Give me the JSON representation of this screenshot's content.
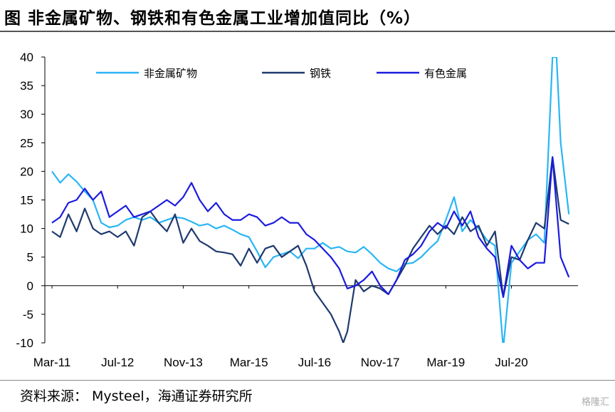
{
  "title": "图  非金属矿物、钢铁和有色金属工业增加值同比（%）",
  "source": "资料来源：  Mysteel，海通证券研究所",
  "watermark": "格隆汇",
  "chart_data": {
    "type": "line",
    "title": "非金属矿物、钢铁和有色金属工业增加值同比（%）",
    "xlabel": "",
    "ylabel": "",
    "ylim": [
      -10,
      40
    ],
    "yticks": [
      40,
      35,
      30,
      25,
      20,
      15,
      10,
      5,
      0,
      -5,
      -10
    ],
    "xlim": [
      0,
      127
    ],
    "x_ticks": [
      {
        "label": "Mar-11",
        "index": 0
      },
      {
        "label": "Jul-12",
        "index": 16
      },
      {
        "label": "Nov-13",
        "index": 32
      },
      {
        "label": "Mar-15",
        "index": 48
      },
      {
        "label": "Jul-16",
        "index": 64
      },
      {
        "label": "Nov-17",
        "index": 80
      },
      {
        "label": "Mar-19",
        "index": 96
      },
      {
        "label": "Jul-20",
        "index": 112
      }
    ],
    "legend_position": "top",
    "series": [
      {
        "name": "非金属矿物",
        "color": "#29B6F6",
        "points": [
          [
            0,
            20
          ],
          [
            2,
            18
          ],
          [
            4,
            19.5
          ],
          [
            6,
            18.2
          ],
          [
            8,
            16.5
          ],
          [
            10,
            15
          ],
          [
            12,
            11
          ],
          [
            14,
            10.2
          ],
          [
            16,
            10.5
          ],
          [
            18,
            11.5
          ],
          [
            20,
            12
          ],
          [
            22,
            11.5
          ],
          [
            24,
            12
          ],
          [
            26,
            11
          ],
          [
            28,
            11.5
          ],
          [
            30,
            12
          ],
          [
            32,
            11.8
          ],
          [
            34,
            11.2
          ],
          [
            36,
            10.5
          ],
          [
            38,
            10.8
          ],
          [
            40,
            10
          ],
          [
            42,
            10.5
          ],
          [
            44,
            9.8
          ],
          [
            46,
            9
          ],
          [
            48,
            8.5
          ],
          [
            50,
            6
          ],
          [
            52,
            3.2
          ],
          [
            54,
            5
          ],
          [
            56,
            5.5
          ],
          [
            58,
            6
          ],
          [
            60,
            4.8
          ],
          [
            62,
            6.5
          ],
          [
            64,
            6.5
          ],
          [
            66,
            7.5
          ],
          [
            68,
            6.5
          ],
          [
            70,
            6.8
          ],
          [
            72,
            6
          ],
          [
            74,
            5.8
          ],
          [
            76,
            6.8
          ],
          [
            78,
            5.5
          ],
          [
            80,
            4
          ],
          [
            82,
            3
          ],
          [
            84,
            2.5
          ],
          [
            86,
            3.8
          ],
          [
            88,
            4
          ],
          [
            90,
            5
          ],
          [
            92,
            6.5
          ],
          [
            94,
            7.8
          ],
          [
            96,
            11.5
          ],
          [
            98,
            15.5
          ],
          [
            100,
            9.5
          ],
          [
            102,
            11.5
          ],
          [
            104,
            10
          ],
          [
            106,
            8
          ],
          [
            108,
            7
          ],
          [
            110,
            -11
          ],
          [
            112,
            4
          ],
          [
            114,
            6
          ],
          [
            116,
            8
          ],
          [
            118,
            9
          ],
          [
            120,
            7.5
          ],
          [
            122,
            40
          ],
          [
            123,
            40
          ],
          [
            124,
            25
          ],
          [
            126,
            12.5
          ]
        ]
      },
      {
        "name": "钢铁",
        "color": "#1F3A6E",
        "points": [
          [
            0,
            9.5
          ],
          [
            2,
            8.5
          ],
          [
            4,
            12.5
          ],
          [
            6,
            9.5
          ],
          [
            8,
            13.5
          ],
          [
            10,
            10
          ],
          [
            12,
            9
          ],
          [
            14,
            9.5
          ],
          [
            16,
            8.5
          ],
          [
            18,
            9.5
          ],
          [
            20,
            7
          ],
          [
            22,
            12
          ],
          [
            24,
            13
          ],
          [
            26,
            11
          ],
          [
            28,
            9.5
          ],
          [
            30,
            12.5
          ],
          [
            32,
            7.5
          ],
          [
            34,
            10
          ],
          [
            36,
            7.8
          ],
          [
            38,
            7
          ],
          [
            40,
            6
          ],
          [
            42,
            5.8
          ],
          [
            44,
            5.5
          ],
          [
            46,
            3.5
          ],
          [
            48,
            6.5
          ],
          [
            50,
            4
          ],
          [
            52,
            6.5
          ],
          [
            54,
            7
          ],
          [
            56,
            5
          ],
          [
            58,
            6
          ],
          [
            60,
            7
          ],
          [
            62,
            3.5
          ],
          [
            64,
            -1
          ],
          [
            66,
            -3
          ],
          [
            68,
            -5
          ],
          [
            70,
            -8
          ],
          [
            71,
            -10
          ],
          [
            72,
            -8
          ],
          [
            74,
            1
          ],
          [
            76,
            -1
          ],
          [
            78,
            0
          ],
          [
            80,
            -0.5
          ],
          [
            82,
            -1.5
          ],
          [
            84,
            1
          ],
          [
            86,
            3.5
          ],
          [
            88,
            6.5
          ],
          [
            90,
            8.5
          ],
          [
            92,
            10.5
          ],
          [
            94,
            9
          ],
          [
            96,
            10.5
          ],
          [
            98,
            9
          ],
          [
            100,
            12
          ],
          [
            102,
            9.5
          ],
          [
            104,
            10.5
          ],
          [
            106,
            7
          ],
          [
            108,
            9.5
          ],
          [
            110,
            -2
          ],
          [
            112,
            5
          ],
          [
            114,
            4.5
          ],
          [
            116,
            8
          ],
          [
            118,
            11
          ],
          [
            120,
            10
          ],
          [
            122,
            22.5
          ],
          [
            124,
            11.5
          ],
          [
            126,
            10.8
          ]
        ]
      },
      {
        "name": "有色金属",
        "color": "#1B1BE0",
        "points": [
          [
            0,
            11
          ],
          [
            2,
            12
          ],
          [
            4,
            14.5
          ],
          [
            6,
            15
          ],
          [
            8,
            17
          ],
          [
            10,
            15
          ],
          [
            12,
            16.5
          ],
          [
            14,
            12
          ],
          [
            16,
            13
          ],
          [
            18,
            14
          ],
          [
            20,
            12
          ],
          [
            22,
            12.5
          ],
          [
            24,
            13
          ],
          [
            26,
            14
          ],
          [
            28,
            15
          ],
          [
            30,
            14
          ],
          [
            32,
            15.5
          ],
          [
            34,
            18
          ],
          [
            36,
            15
          ],
          [
            38,
            13
          ],
          [
            40,
            14.5
          ],
          [
            42,
            12.5
          ],
          [
            44,
            11.5
          ],
          [
            46,
            11.5
          ],
          [
            48,
            12.5
          ],
          [
            50,
            12
          ],
          [
            52,
            10.5
          ],
          [
            54,
            11
          ],
          [
            56,
            12
          ],
          [
            58,
            11
          ],
          [
            60,
            11
          ],
          [
            62,
            9
          ],
          [
            64,
            8
          ],
          [
            66,
            6.5
          ],
          [
            68,
            5
          ],
          [
            70,
            3
          ],
          [
            72,
            -0.5
          ],
          [
            74,
            0
          ],
          [
            76,
            1
          ],
          [
            78,
            2.5
          ],
          [
            80,
            0
          ],
          [
            82,
            -1.5
          ],
          [
            84,
            1
          ],
          [
            86,
            4.5
          ],
          [
            88,
            5.5
          ],
          [
            90,
            7
          ],
          [
            92,
            9.5
          ],
          [
            94,
            11
          ],
          [
            96,
            10
          ],
          [
            98,
            13
          ],
          [
            100,
            10.5
          ],
          [
            102,
            13
          ],
          [
            104,
            8.5
          ],
          [
            106,
            6.5
          ],
          [
            108,
            5
          ],
          [
            110,
            -2
          ],
          [
            112,
            7
          ],
          [
            114,
            4.5
          ],
          [
            116,
            3
          ],
          [
            118,
            4
          ],
          [
            120,
            4
          ],
          [
            122,
            22.5
          ],
          [
            124,
            5
          ],
          [
            126,
            1.5
          ]
        ]
      }
    ]
  }
}
